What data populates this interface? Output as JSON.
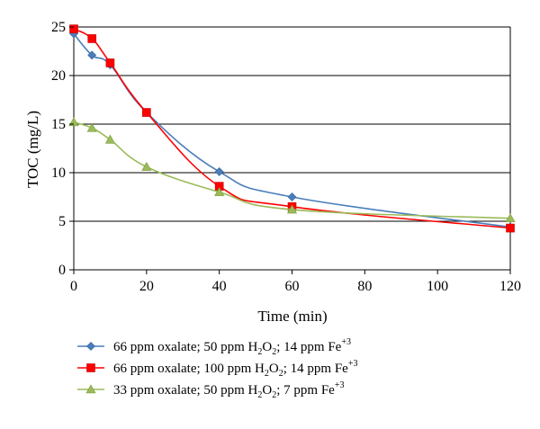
{
  "chart_data": {
    "type": "line",
    "xlabel": "Time (min)",
    "ylabel": "TOC (mg/L)",
    "xlim": [
      0,
      120
    ],
    "ylim": [
      0,
      25
    ],
    "xticks": [
      0,
      20,
      40,
      60,
      80,
      100,
      120
    ],
    "yticks": [
      0,
      5,
      10,
      15,
      20,
      25
    ],
    "x_tick_labels": [
      "0",
      "20",
      "40",
      "60",
      "80",
      "100",
      "120"
    ],
    "y_tick_labels": [
      "0",
      "5",
      "10",
      "15",
      "20",
      "25"
    ],
    "grid": "horizontal",
    "legend_position": "bottom",
    "series": [
      {
        "legend": {
          "prefix": "66 ppm oxalate; 50 ppm H",
          "sub": "2",
          "mid": "O",
          "sub2": "2",
          "suffix": "; 14 ppm Fe",
          "sup": "+3"
        },
        "color": "#4a7ebb",
        "marker": "diamond",
        "x": [
          0,
          5,
          10,
          20,
          40,
          60,
          120
        ],
        "y": [
          24.3,
          22.1,
          21.1,
          16.2,
          10.1,
          7.5,
          4.4
        ]
      },
      {
        "legend": {
          "prefix": "66 ppm oxalate; 100 ppm H",
          "sub": "2",
          "mid": "O",
          "sub2": "2",
          "suffix": "; 14 ppm Fe",
          "sup": "+3"
        },
        "color": "#ff0000",
        "marker": "square",
        "x": [
          0,
          5,
          10,
          20,
          40,
          60,
          120
        ],
        "y": [
          24.8,
          23.8,
          21.3,
          16.2,
          8.6,
          6.5,
          4.3
        ]
      },
      {
        "legend": {
          "prefix": "33 ppm oxalate; 50 ppm H",
          "sub": "2",
          "mid": "O",
          "sub2": "2",
          "suffix": "; 7 ppm Fe",
          "sup": "+3"
        },
        "color": "#9bbb59",
        "marker": "triangle",
        "x": [
          0,
          5,
          10,
          20,
          40,
          60,
          120
        ],
        "y": [
          15.2,
          14.6,
          13.4,
          10.6,
          8.0,
          6.2,
          5.3
        ]
      }
    ]
  }
}
